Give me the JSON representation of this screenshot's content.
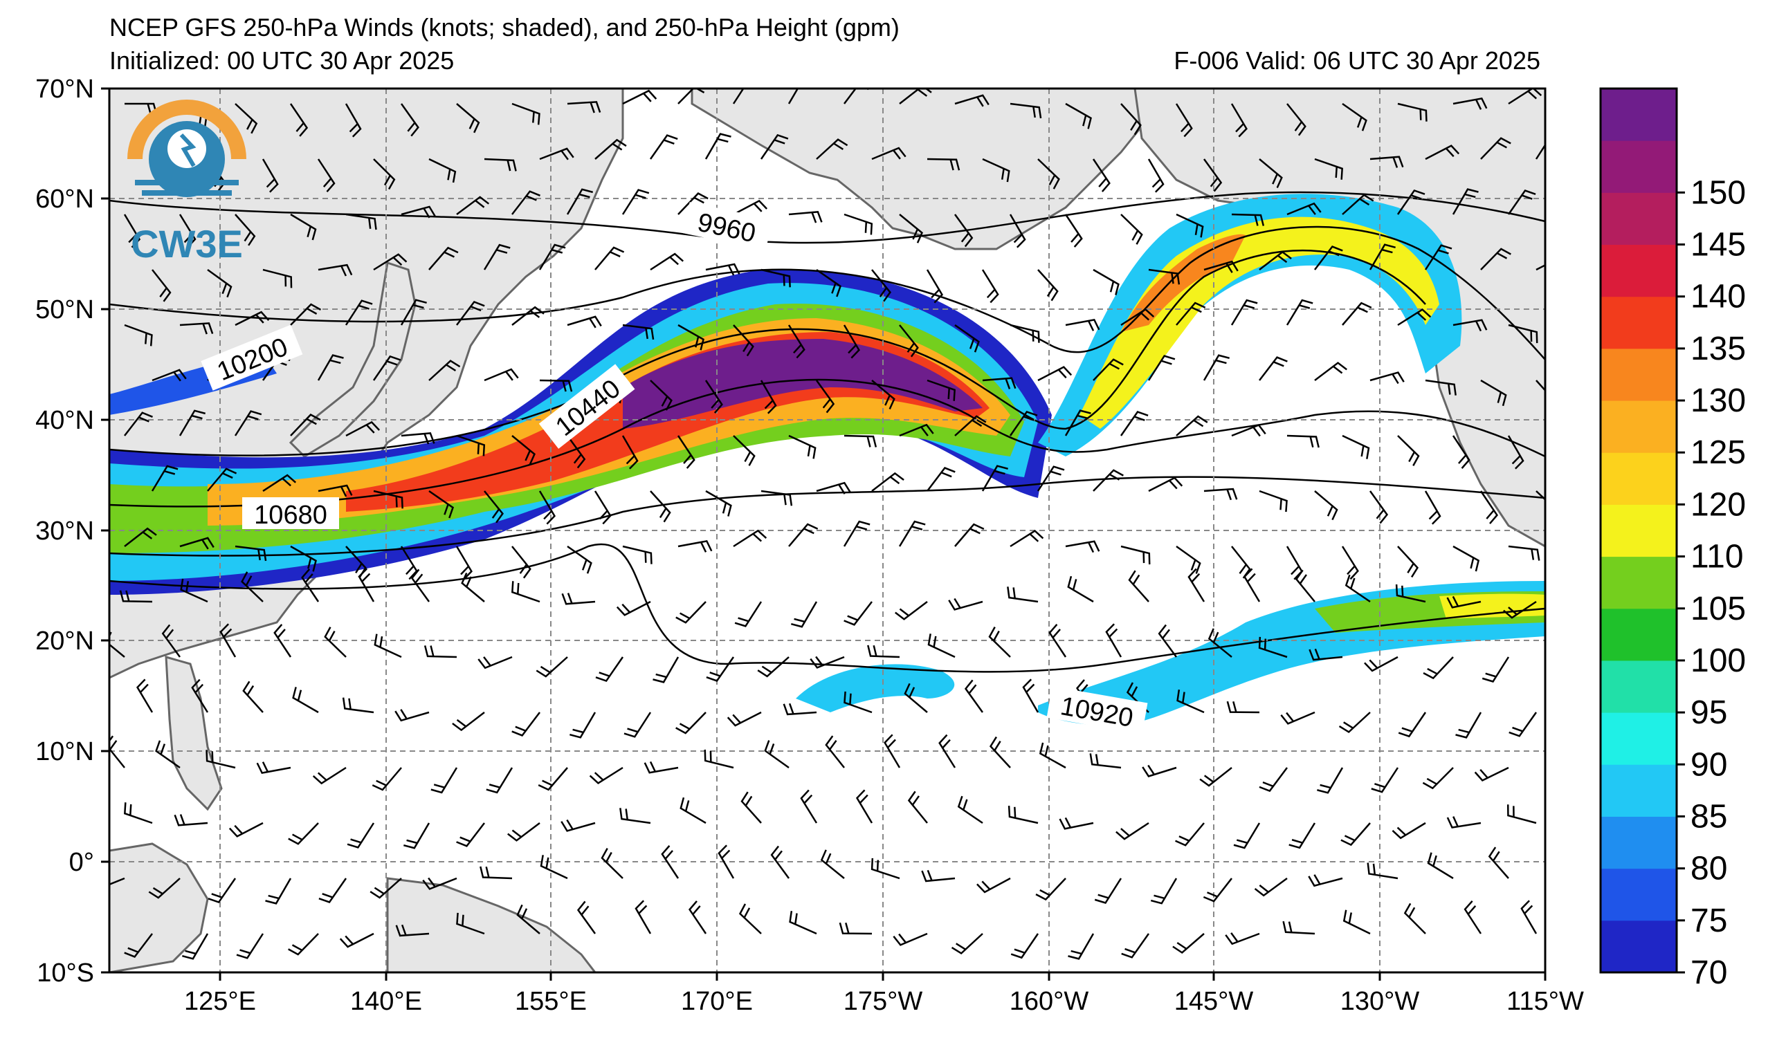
{
  "header": {
    "title": "NCEP GFS 250-hPa Winds (knots; shaded), and 250-hPa Height (gpm)",
    "initialized": "Initialized: 00 UTC 30 Apr 2025",
    "valid": "F-006  Valid: 06 UTC 30 Apr 2025"
  },
  "logo": {
    "text": "CW3E",
    "colors": {
      "orange": "#f2a23c",
      "blue": "#2f86b5"
    }
  },
  "map": {
    "lat_labels": [
      "70°N",
      "60°N",
      "50°N",
      "40°N",
      "30°N",
      "20°N",
      "10°N",
      "0°",
      "10°S"
    ],
    "lon_labels": [
      "125°E",
      "140°E",
      "155°E",
      "170°E",
      "175°W",
      "160°W",
      "145°W",
      "130°W",
      "115°W"
    ],
    "lat_range": [
      -10,
      70
    ],
    "lon_range": [
      110,
      245
    ],
    "grid": true,
    "land_color": "#e6e6e6"
  },
  "height_labels": [
    "9960",
    "10200",
    "10440",
    "10680",
    "10920"
  ],
  "colorbar": {
    "ticks": [
      "70",
      "75",
      "80",
      "85",
      "90",
      "95",
      "100",
      "105",
      "110",
      "120",
      "125",
      "130",
      "135",
      "140",
      "145",
      "150"
    ],
    "colors": [
      "#1f26c6",
      "#1f55e8",
      "#1f8ef0",
      "#22c8f5",
      "#1ff0e6",
      "#21e0a8",
      "#1fc12b",
      "#74cf1e",
      "#f4f21c",
      "#fcd21c",
      "#fbb021",
      "#f8861e",
      "#f23c1c",
      "#db1c3a",
      "#b41e5e",
      "#931a77",
      "#6e1e8c"
    ]
  },
  "chart_data": {
    "type": "heatmap",
    "title": "NCEP GFS 250-hPa Winds (knots; shaded), and 250-hPa Height (gpm)",
    "variable": "wind speed (knots)",
    "color_scale": [
      70,
      75,
      80,
      85,
      90,
      95,
      100,
      105,
      110,
      120,
      125,
      130,
      135,
      140,
      145,
      150
    ],
    "contours": [
      "9960",
      "10200",
      "10440",
      "10680",
      "10920"
    ],
    "lat_range": [
      -10,
      70
    ],
    "lon_range": [
      110,
      245
    ]
  }
}
